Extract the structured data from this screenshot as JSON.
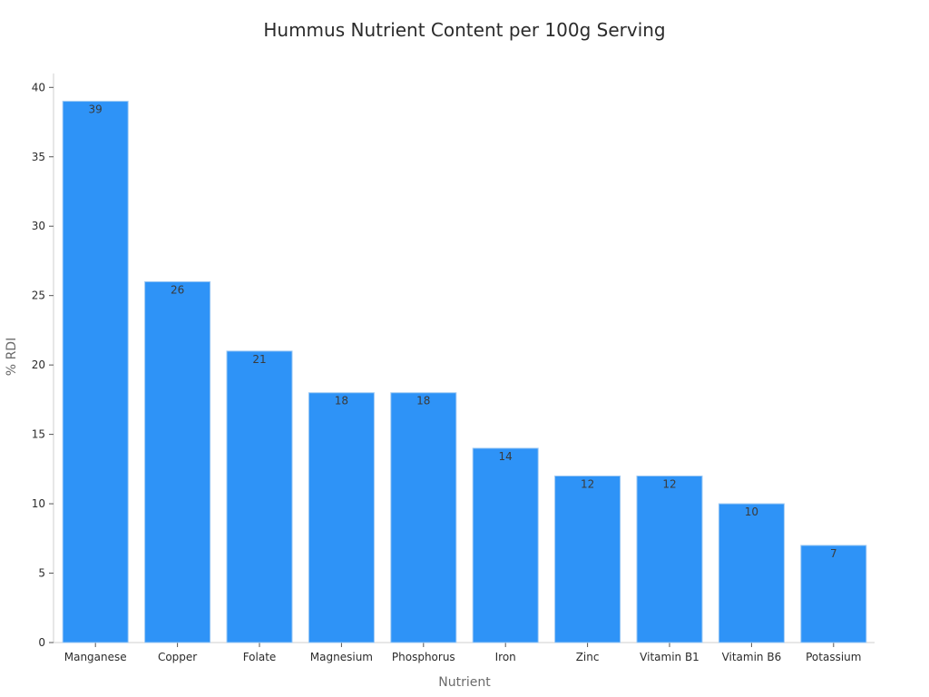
{
  "chart_data": {
    "type": "bar",
    "title": "Hummus Nutrient Content per 100g Serving",
    "xlabel": "Nutrient",
    "ylabel": "% RDI",
    "categories": [
      "Manganese",
      "Copper",
      "Folate",
      "Magnesium",
      "Phosphorus",
      "Iron",
      "Zinc",
      "Vitamin B1",
      "Vitamin B6",
      "Potassium"
    ],
    "values": [
      39,
      26,
      21,
      18,
      18,
      14,
      12,
      12,
      10,
      7
    ],
    "data_labels": [
      "39",
      "26",
      "21",
      "18",
      "18",
      "14",
      "12",
      "12",
      "10",
      "7"
    ],
    "ylim": [
      0,
      41
    ],
    "yticks": [
      0,
      5,
      10,
      15,
      20,
      25,
      30,
      35,
      40
    ],
    "ytick_labels": [
      "0",
      "5",
      "10",
      "15",
      "20",
      "25",
      "30",
      "35",
      "40"
    ],
    "grid": false,
    "legend": "none",
    "bar_color": "#2e93f7",
    "bar_edge_color": "#9ec9f3"
  }
}
